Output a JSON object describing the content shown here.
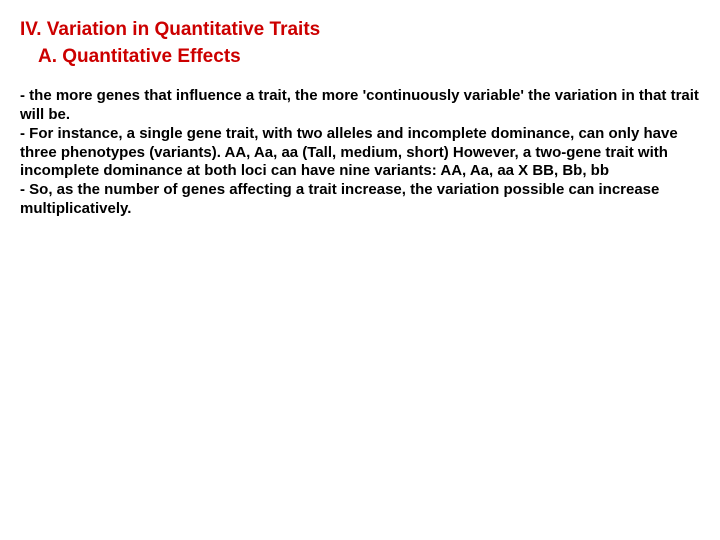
{
  "heading": {
    "main": "IV. Variation in Quantitative Traits",
    "sub": "A. Quantitative Effects",
    "color": "#cc0000",
    "fontsize": 19
  },
  "body": {
    "text": "- the more genes that influence a trait, the more 'continuously variable' the variation in that trait will be.\n- For instance, a single gene trait, with two alleles and incomplete dominance, can only have three phenotypes (variants). AA, Aa, aa (Tall, medium, short) However, a two-gene trait with incomplete dominance at both loci can have nine variants: AA, Aa, aa X BB, Bb, bb\n- So, as the number of genes affecting a trait increase, the variation possible can increase multiplicatively.",
    "color": "#000000",
    "fontsize": 15
  },
  "background_color": "#ffffff"
}
